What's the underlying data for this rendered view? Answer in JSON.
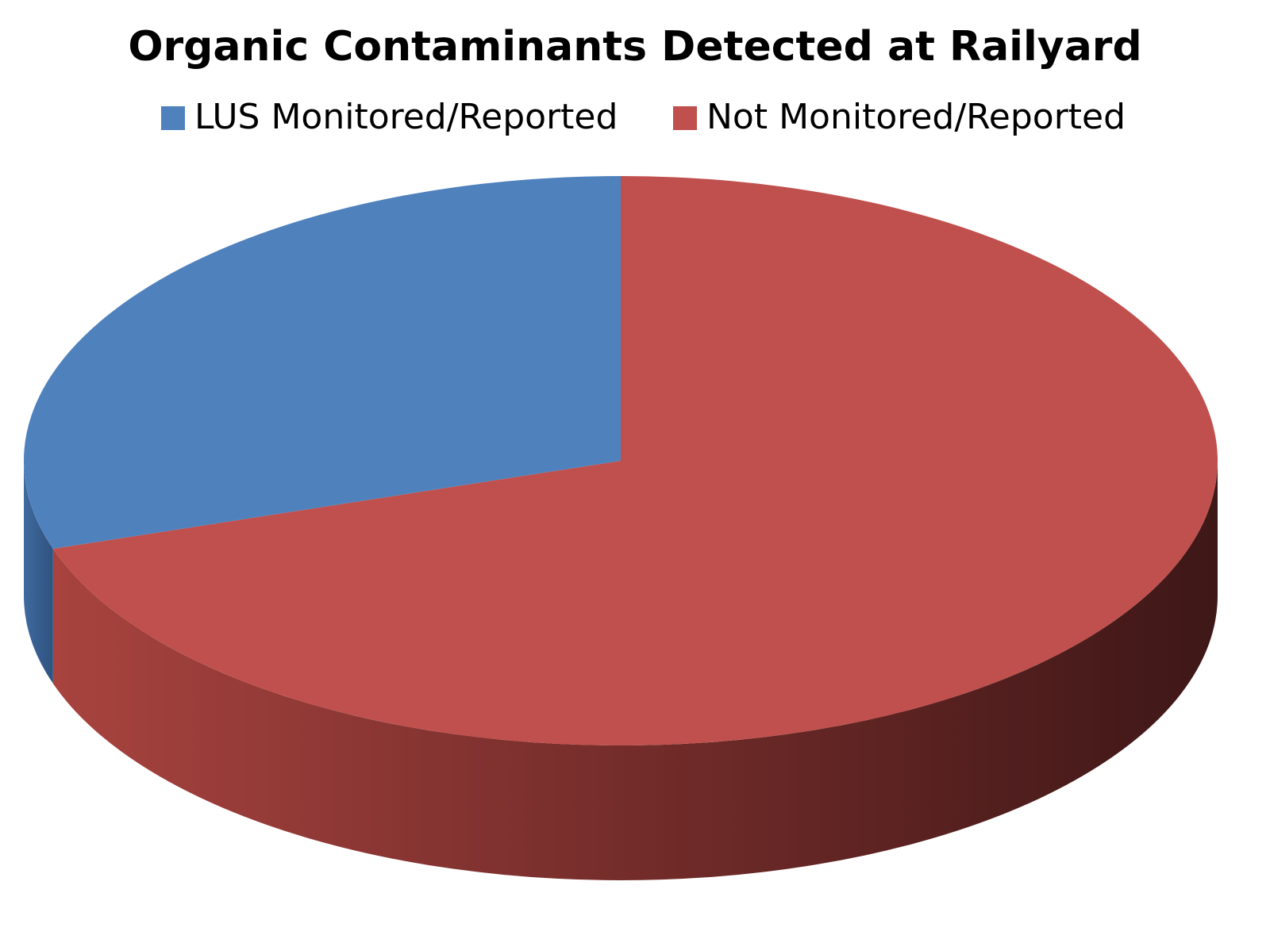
{
  "chart_data": {
    "type": "pie",
    "title": "Organic Contaminants Detected at Railyard",
    "categories": [
      "LUS Monitored/Reported",
      "Not Monitored/Reported"
    ],
    "values": [
      30,
      70
    ],
    "colors": [
      "#4f81bd",
      "#c0504d"
    ]
  }
}
